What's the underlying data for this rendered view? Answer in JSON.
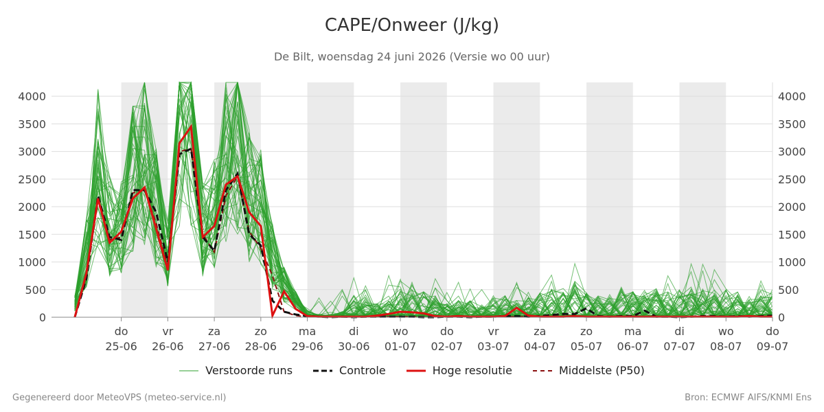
{
  "header": {
    "title": "CAPE/Onweer (J/kg)",
    "subtitle": "De Bilt, woensdag 24 juni 2026 (Versie wo 00 uur)"
  },
  "footer": {
    "left": "Gegenereerd door MeteoVPS (meteo-service.nl)",
    "right": "Bron: ECMWF AIFS/KNMI Ens"
  },
  "colors": {
    "ensemble": "#2ca02c",
    "controle": "#111111",
    "hoge_resolutie": "#dd1111",
    "p50": "#8b1010",
    "shade": "#ebebeb"
  },
  "chart_data": {
    "type": "line",
    "title": "CAPE/Onweer (J/kg)",
    "ylim": [
      0,
      4250
    ],
    "yticks": [
      0,
      500,
      1000,
      1500,
      2000,
      2500,
      3000,
      3500,
      4000
    ],
    "xlim": [
      -1.5,
      14
    ],
    "grid": true,
    "legend_position": "bottom",
    "x_ticks": [
      {
        "day": "do",
        "date": "25-06"
      },
      {
        "day": "vr",
        "date": "26-06"
      },
      {
        "day": "za",
        "date": "27-06"
      },
      {
        "day": "zo",
        "date": "28-06"
      },
      {
        "day": "ma",
        "date": "29-06"
      },
      {
        "day": "di",
        "date": "30-06"
      },
      {
        "day": "wo",
        "date": "01-07"
      },
      {
        "day": "do",
        "date": "02-07"
      },
      {
        "day": "vr",
        "date": "03-07"
      },
      {
        "day": "za",
        "date": "04-07"
      },
      {
        "day": "zo",
        "date": "05-07"
      },
      {
        "day": "ma",
        "date": "06-07"
      },
      {
        "day": "di",
        "date": "07-07"
      },
      {
        "day": "wo",
        "date": "08-07"
      },
      {
        "day": "do",
        "date": "09-07"
      }
    ],
    "x_step_days": 0.25,
    "ensemble_members": 50,
    "series": [
      {
        "name": "Verstoorde runs",
        "style": "thin",
        "values": [
          250,
          1200,
          2700,
          1650,
          1600,
          2500,
          2850,
          2000,
          1150,
          3600,
          3700,
          1600,
          1900,
          3000,
          3300,
          2200,
          2000,
          1100,
          600,
          300,
          50,
          20,
          10,
          40,
          150,
          200,
          100,
          150,
          200,
          250,
          180,
          150,
          100,
          120,
          120,
          100,
          150,
          150,
          120,
          150,
          180,
          200,
          180,
          250,
          200,
          150,
          150,
          200,
          180,
          200,
          200,
          180,
          200,
          250,
          200,
          200,
          200,
          180,
          150,
          200,
          180
        ]
      },
      {
        "name": "Controle",
        "style": "dashed",
        "values": [
          0,
          700,
          2200,
          1450,
          1400,
          2300,
          2300,
          1900,
          1000,
          2950,
          3050,
          1450,
          1200,
          2300,
          2600,
          1500,
          1300,
          300,
          100,
          50,
          20,
          10,
          0,
          10,
          0,
          10,
          10,
          10,
          10,
          10,
          0,
          0,
          10,
          10,
          0,
          10,
          10,
          20,
          20,
          10,
          20,
          40,
          60,
          60,
          160,
          20,
          10,
          20,
          20,
          120,
          10,
          10,
          0,
          10,
          20,
          20,
          10,
          20,
          10,
          20,
          30
        ]
      },
      {
        "name": "Hoge resolutie",
        "style": "thick",
        "values": [
          0,
          800,
          2150,
          1350,
          1550,
          2150,
          2350,
          1600,
          850,
          3150,
          3450,
          1450,
          1650,
          2400,
          2550,
          1900,
          1650,
          30,
          470,
          150,
          20,
          10,
          10,
          10,
          10,
          10,
          30,
          60,
          100,
          90,
          70,
          20,
          10,
          20,
          10,
          10,
          10,
          20,
          170,
          30,
          10,
          10,
          10,
          20,
          10,
          10,
          10,
          10,
          10,
          10,
          10,
          10,
          10,
          10,
          10,
          10,
          10,
          10,
          20,
          10,
          10
        ]
      },
      {
        "name": "Middelste (P50)",
        "style": "dashed-thin",
        "values": [
          0,
          750,
          2100,
          1400,
          1450,
          2250,
          2300,
          1700,
          900,
          3000,
          3050,
          1500,
          1180,
          2200,
          2550,
          1550,
          1250,
          750,
          100,
          30,
          10,
          5,
          5,
          5,
          10,
          10,
          10,
          10,
          10,
          10,
          10,
          10,
          10,
          10,
          10,
          10,
          10,
          10,
          10,
          10,
          10,
          10,
          10,
          10,
          10,
          10,
          10,
          10,
          10,
          10,
          10,
          10,
          10,
          10,
          10,
          10,
          10,
          10,
          10,
          10,
          10
        ]
      }
    ]
  }
}
